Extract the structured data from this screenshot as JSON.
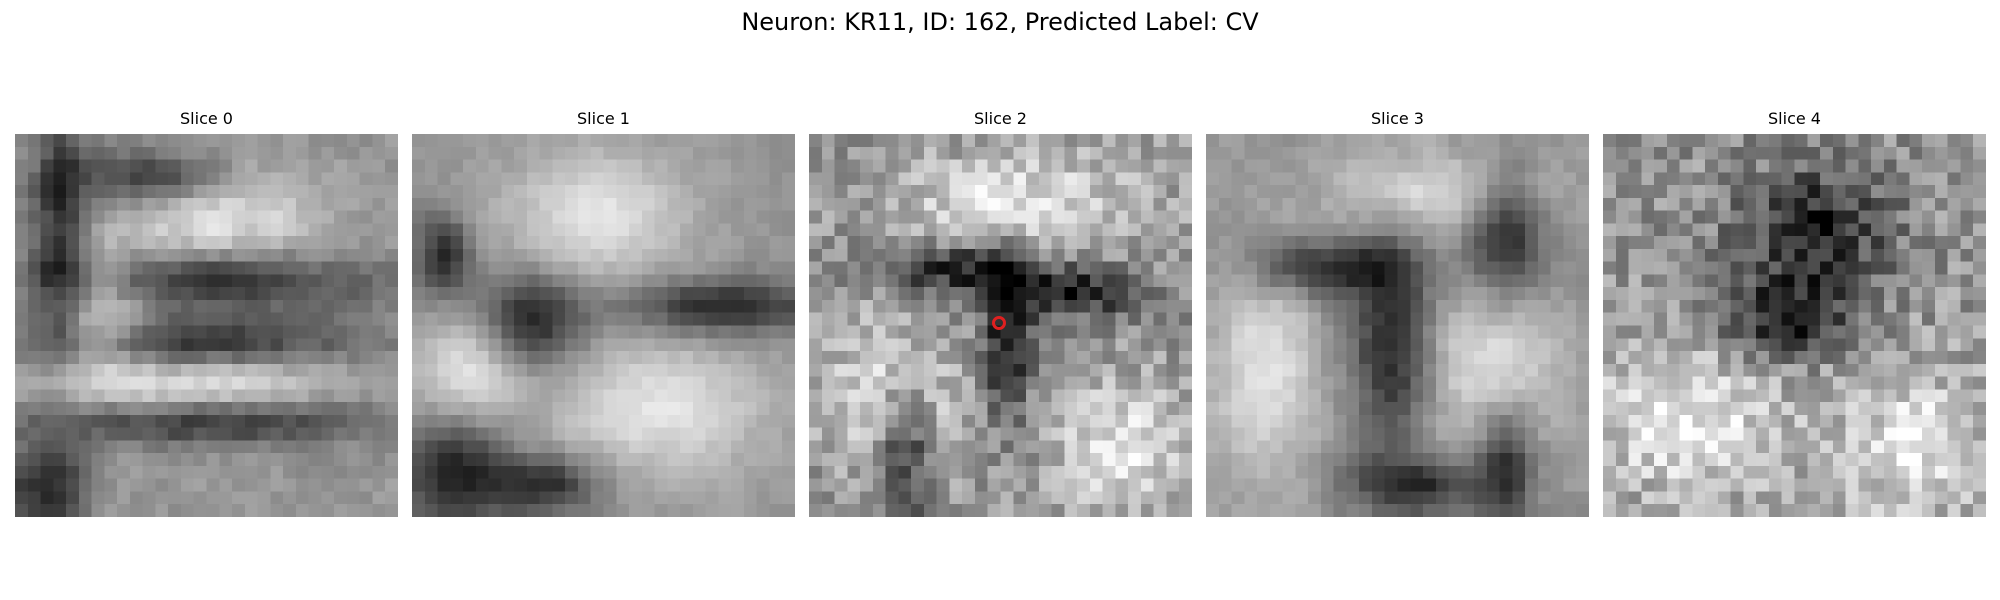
{
  "figure": {
    "title": "Neuron: KR11, ID: 162, Predicted Label: CV"
  },
  "slices": [
    {
      "label": "Slice 0"
    },
    {
      "label": "Slice 1"
    },
    {
      "label": "Slice 2"
    },
    {
      "label": "Slice 3"
    },
    {
      "label": "Slice 4"
    }
  ],
  "marker_color": "#e02020"
}
